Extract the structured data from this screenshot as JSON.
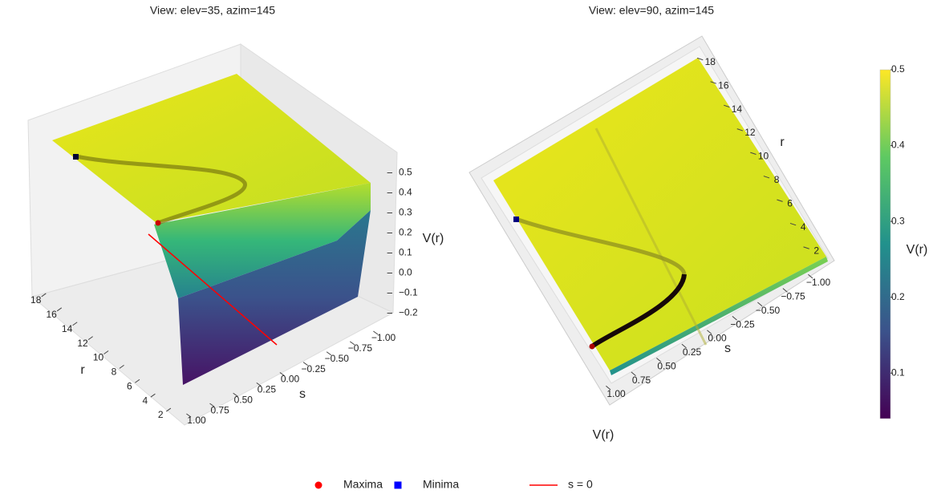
{
  "chart_data": [
    {
      "type": "surface3d",
      "title": "View: elev=35, azim=145",
      "xlabel": "s",
      "ylabel": "r",
      "zlabel": "V(r)",
      "xlim": [
        -1,
        1
      ],
      "xticks": [
        {
          "value": -1,
          "label": "−1.00"
        },
        {
          "value": -0.75,
          "label": "−0.75"
        },
        {
          "value": -0.5,
          "label": "−0.50"
        },
        {
          "value": -0.25,
          "label": "−0.25"
        },
        {
          "value": 0,
          "label": "0.00"
        },
        0.25,
        {
          "value": 0.5,
          "label": "0.50"
        },
        0.75,
        {
          "value": 1,
          "label": "1.00"
        }
      ],
      "ylim": [
        1,
        19
      ],
      "yticks": [
        2,
        4,
        6,
        8,
        10,
        12,
        14,
        16,
        18
      ],
      "zlim": [
        -0.25,
        0.55
      ],
      "zticks": [
        {
          "value": -0.2,
          "label": "−0.2"
        },
        {
          "value": -0.1,
          "label": "−0.1"
        },
        {
          "value": 0,
          "label": "0.0"
        },
        0.1,
        0.2,
        0.3,
        0.4,
        0.5
      ]
    },
    {
      "type": "surface3d",
      "title": "View: elev=90, azim=145",
      "xlabel": "s",
      "ylabel": "r",
      "zlabel": "V(r)",
      "xlim": [
        -1,
        1
      ],
      "xticks": [
        {
          "value": -1,
          "label": "−1.00"
        },
        {
          "value": -0.75,
          "label": "−0.75"
        },
        {
          "value": -0.5,
          "label": "−0.50"
        },
        {
          "value": -0.25,
          "label": "−0.25"
        },
        {
          "value": 0,
          "label": "0.00"
        },
        0.25,
        {
          "value": 0.5,
          "label": "0.50"
        },
        0.75,
        {
          "value": 1,
          "label": "1.00"
        }
      ],
      "ylim": [
        1,
        19
      ],
      "yticks": [
        2,
        4,
        6,
        8,
        10,
        12,
        14,
        16,
        18
      ]
    }
  ],
  "colorbar": {
    "label": "V(r)",
    "colormap": "viridis",
    "lim": [
      0.04,
      0.5
    ],
    "ticks": [
      0.1,
      0.2,
      0.3,
      0.4,
      0.5
    ]
  },
  "legend": {
    "series": [
      {
        "name": "Maxima",
        "color": "#ff0000",
        "marker": "circle"
      },
      {
        "name": "Minima",
        "color": "#0000ff",
        "marker": "square"
      },
      {
        "name": "s = 0",
        "color": "#ff0000",
        "marker": "line"
      }
    ]
  }
}
